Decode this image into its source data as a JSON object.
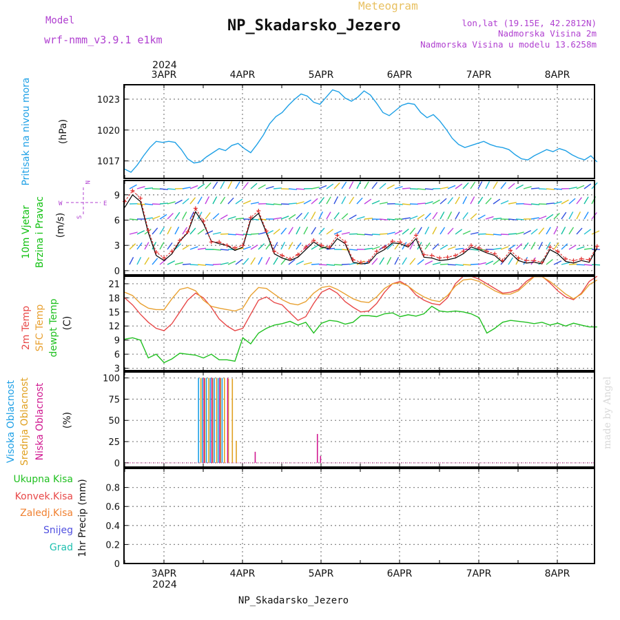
{
  "header": {
    "model_label": "Model",
    "model_name": "wrf-nmm_v3.9.1 e1km",
    "product": "Meteogram",
    "station": "NP_Skadarsko_Jezero",
    "lonlat": "lon,lat (19.15E, 42.2812N)",
    "elevation": "Nadmorska Visina 2m",
    "model_elevation": "Nadmorska Visina u modelu 13.6258m",
    "footer_station": "NP_Skadarsko_Jezero",
    "watermark": "made by Angel"
  },
  "colors": {
    "pressure": "#1ea0e6",
    "wind_label": "#10c010",
    "wind_line": "#000000",
    "wind_gust": "#e03030",
    "temp2m": "#e84848",
    "sfc_temp": "#e8a030",
    "dewpt": "#20c020",
    "cloud_high": "#1ea0e6",
    "cloud_mid": "#e0a020",
    "cloud_low": "#d01890",
    "precip_total": "#20c020",
    "precip_conv": "#e84848",
    "precip_frz": "#f08030",
    "snow": "#5050e0",
    "hail": "#20c0b0",
    "compass": "#b040d0",
    "grid": "#888888"
  },
  "chart_data": [
    {
      "type": "line",
      "id": "pressure",
      "ylabel": [
        "Pritisak na nivou mora",
        "(hPa)"
      ],
      "x_labels_top": [
        "3APR",
        "4APR",
        "5APR",
        "6APR",
        "7APR",
        "8APR"
      ],
      "year_top": "2024",
      "ylim": [
        1015.3,
        1024.4
      ],
      "yticks": [
        1017,
        1020,
        1023
      ],
      "grid": true,
      "series": [
        {
          "x": [
            0,
            0.08,
            0.16,
            0.24,
            0.32,
            0.4,
            0.48,
            0.56,
            0.64,
            0.72,
            0.8,
            0.88,
            0.96,
            1.04,
            1.12,
            1.2,
            1.28,
            1.36,
            1.44,
            1.52,
            1.6,
            1.68,
            1.76,
            1.84,
            1.92,
            2,
            2.08,
            2.16,
            2.24,
            2.32,
            2.4,
            2.48,
            2.56,
            2.64,
            2.72,
            2.8,
            2.88,
            2.96,
            3.04,
            3.12,
            3.2,
            3.28,
            3.36,
            3.44,
            3.52,
            3.6,
            3.68,
            3.76,
            3.84,
            3.92,
            4,
            4.08,
            4.16,
            4.24,
            4.32,
            4.4,
            4.48,
            4.56,
            4.64,
            4.72,
            4.8,
            4.88,
            4.96,
            5.04,
            5.12,
            5.2,
            5.28,
            5.36,
            5.44,
            5.52,
            5.6,
            5.68,
            5.76,
            5.84,
            5.92,
            6
          ],
          "values": [
            1016.2,
            1015.9,
            1016.6,
            1017.5,
            1018.3,
            1018.9,
            1018.8,
            1018.9,
            1018.8,
            1018.1,
            1017.2,
            1016.8,
            1016.9,
            1017.4,
            1017.8,
            1018.2,
            1018.0,
            1018.5,
            1018.7,
            1018.2,
            1017.8,
            1018.6,
            1019.5,
            1020.6,
            1021.3,
            1021.7,
            1022.4,
            1023.0,
            1023.5,
            1023.3,
            1022.7,
            1022.5,
            1023.2,
            1023.9,
            1023.7,
            1023.1,
            1022.8,
            1023.2,
            1023.8,
            1023.4,
            1022.6,
            1021.7,
            1021.4,
            1021.9,
            1022.4,
            1022.6,
            1022.5,
            1021.7,
            1021.2,
            1021.5,
            1020.9,
            1020.1,
            1019.2,
            1018.6,
            1018.3,
            1018.5,
            1018.7,
            1018.9,
            1018.6,
            1018.4,
            1018.3,
            1018.1,
            1017.6,
            1017.2,
            1017.1,
            1017.5,
            1017.8,
            1018.1,
            1017.9,
            1018.2,
            1018.0,
            1017.6,
            1017.3,
            1017.1,
            1017.5,
            1016.9
          ]
        }
      ]
    },
    {
      "type": "line",
      "id": "wind",
      "ylabel": [
        "10m Vjetar",
        "Brzina i Pravac",
        "(m/s)"
      ],
      "compass": {
        "n": "N",
        "e": "E",
        "w": "W",
        "s": "S"
      },
      "ylim": [
        -0.5,
        10.7
      ],
      "yticks": [
        0,
        3,
        6,
        9
      ],
      "grid": true,
      "series": [
        {
          "name": "speed",
          "x": [
            0,
            0.1,
            0.2,
            0.3,
            0.4,
            0.5,
            0.6,
            0.7,
            0.8,
            0.9,
            1,
            1.1,
            1.2,
            1.3,
            1.4,
            1.5,
            1.6,
            1.7,
            1.8,
            1.9,
            2,
            2.1,
            2.2,
            2.3,
            2.4,
            2.5,
            2.6,
            2.7,
            2.8,
            2.9,
            3,
            3.1,
            3.2,
            3.3,
            3.4,
            3.5,
            3.6,
            3.7,
            3.8,
            3.9,
            4,
            4.1,
            4.2,
            4.3,
            4.4,
            4.5,
            4.6,
            4.7,
            4.8,
            4.9,
            5,
            5.1,
            5.2,
            5.3,
            5.4,
            5.5,
            5.6,
            5.7,
            5.8,
            5.9,
            6
          ],
          "values": [
            7.5,
            9.0,
            8.2,
            4.5,
            1.8,
            1.2,
            2.0,
            3.5,
            4.5,
            7.0,
            5.6,
            3.5,
            3.2,
            3.0,
            2.4,
            2.8,
            6.0,
            6.8,
            4.5,
            2.0,
            1.5,
            1.2,
            1.6,
            2.5,
            3.4,
            2.8,
            2.6,
            3.8,
            3.2,
            1.0,
            0.8,
            0.9,
            2.0,
            2.5,
            3.3,
            3.2,
            2.8,
            3.8,
            1.6,
            1.5,
            1.2,
            1.3,
            1.5,
            2.0,
            2.8,
            2.5,
            2.1,
            1.8,
            1.0,
            2.1,
            1.2,
            0.9,
            1.0,
            0.8,
            2.5,
            2.0,
            1.1,
            0.9,
            1.2,
            1.0,
            2.7
          ]
        },
        {
          "name": "gust",
          "x": [
            0,
            0.1,
            0.2,
            0.3,
            0.4,
            0.5,
            0.6,
            0.7,
            0.8,
            0.9,
            1,
            1.1,
            1.2,
            1.3,
            1.4,
            1.5,
            1.6,
            1.7,
            1.8,
            1.9,
            2,
            2.1,
            2.2,
            2.3,
            2.4,
            2.5,
            2.6,
            2.7,
            2.8,
            2.9,
            3,
            3.1,
            3.2,
            3.3,
            3.4,
            3.5,
            3.6,
            3.7,
            3.8,
            3.9,
            4,
            4.1,
            4.2,
            4.3,
            4.4,
            4.5,
            4.6,
            4.7,
            4.8,
            4.9,
            5,
            5.1,
            5.2,
            5.3,
            5.4,
            5.5,
            5.6,
            5.7,
            5.8,
            5.9,
            6
          ],
          "values": [
            8.2,
            9.5,
            8.6,
            4.8,
            2.2,
            1.5,
            2.3,
            3.6,
            4.6,
            7.4,
            5.9,
            3.4,
            3.4,
            3.0,
            2.7,
            3.0,
            6.3,
            7.1,
            4.7,
            2.3,
            1.8,
            1.4,
            1.9,
            2.8,
            3.6,
            3.0,
            2.8,
            4.2,
            3.4,
            1.3,
            1.0,
            1.1,
            2.3,
            2.8,
            3.5,
            3.4,
            3.0,
            4.2,
            1.9,
            1.8,
            1.5,
            1.6,
            1.8,
            2.3,
            3.0,
            2.7,
            2.3,
            2.0,
            1.2,
            2.4,
            1.5,
            1.2,
            1.2,
            1.0,
            2.8,
            2.3,
            1.4,
            1.2,
            1.4,
            1.3,
            2.9
          ]
        }
      ]
    },
    {
      "type": "line",
      "id": "temperature",
      "ylabel": [
        "2m Temp",
        "SFC Temp",
        "dewpt Temp",
        "(C)"
      ],
      "ylim": [
        2.5,
        22.6
      ],
      "yticks": [
        3,
        6,
        9,
        12,
        15,
        18,
        21
      ],
      "grid": true,
      "series": [
        {
          "name": "2m Temp",
          "x": [
            0,
            0.1,
            0.2,
            0.3,
            0.4,
            0.5,
            0.6,
            0.7,
            0.8,
            0.9,
            1,
            1.1,
            1.2,
            1.3,
            1.4,
            1.5,
            1.6,
            1.7,
            1.8,
            1.9,
            2,
            2.1,
            2.2,
            2.3,
            2.4,
            2.5,
            2.6,
            2.7,
            2.8,
            2.9,
            3,
            3.1,
            3.2,
            3.3,
            3.4,
            3.5,
            3.6,
            3.7,
            3.8,
            3.9,
            4,
            4.1,
            4.2,
            4.3,
            4.4,
            4.5,
            4.6,
            4.7,
            4.8,
            4.9,
            5,
            5.1,
            5.2,
            5.3,
            5.4,
            5.5,
            5.6,
            5.7,
            5.8,
            5.9,
            6
          ],
          "values": [
            18.0,
            16.5,
            14.5,
            12.8,
            11.5,
            11.0,
            12.5,
            15.0,
            17.5,
            19.0,
            18.0,
            16.0,
            13.5,
            12.0,
            11.0,
            11.5,
            14.5,
            17.5,
            18.2,
            17.0,
            16.5,
            14.8,
            13.2,
            14.0,
            16.8,
            19.2,
            20.0,
            19.0,
            17.2,
            16.0,
            15.0,
            15.2,
            16.8,
            19.2,
            21.0,
            21.5,
            20.5,
            18.6,
            17.5,
            16.8,
            16.5,
            18.0,
            21.0,
            23.0,
            22.8,
            22.0,
            21.0,
            20.0,
            19.0,
            19.2,
            19.8,
            21.5,
            22.8,
            22.6,
            21.2,
            19.5,
            18.2,
            17.6,
            19.0,
            21.5,
            22.8
          ]
        },
        {
          "name": "SFC Temp",
          "x": [
            0,
            0.1,
            0.2,
            0.3,
            0.4,
            0.5,
            0.6,
            0.7,
            0.8,
            0.9,
            1,
            1.1,
            1.2,
            1.3,
            1.4,
            1.5,
            1.6,
            1.7,
            1.8,
            1.9,
            2,
            2.1,
            2.2,
            2.3,
            2.4,
            2.5,
            2.6,
            2.7,
            2.8,
            2.9,
            3,
            3.1,
            3.2,
            3.3,
            3.4,
            3.5,
            3.6,
            3.7,
            3.8,
            3.9,
            4,
            4.1,
            4.2,
            4.3,
            4.4,
            4.5,
            4.6,
            4.7,
            4.8,
            4.9,
            5,
            5.1,
            5.2,
            5.3,
            5.4,
            5.5,
            5.6,
            5.7,
            5.8,
            5.9,
            6
          ],
          "values": [
            19.2,
            18.5,
            16.8,
            15.8,
            15.5,
            15.5,
            17.8,
            19.8,
            20.2,
            19.5,
            17.5,
            16.2,
            15.8,
            15.5,
            15.2,
            15.8,
            18.5,
            20.2,
            20.0,
            18.8,
            17.6,
            16.8,
            16.5,
            17.2,
            19.0,
            20.2,
            20.5,
            19.8,
            18.8,
            17.8,
            17.2,
            17.0,
            18.2,
            20.0,
            21.0,
            21.2,
            20.5,
            19.2,
            18.2,
            17.5,
            17.2,
            18.5,
            20.5,
            21.8,
            22.0,
            21.5,
            20.5,
            19.5,
            18.8,
            18.8,
            19.5,
            21.0,
            22.5,
            22.5,
            21.5,
            20.2,
            18.8,
            17.8,
            18.8,
            20.8,
            21.8
          ]
        },
        {
          "name": "dewpt Temp",
          "x": [
            0,
            0.1,
            0.2,
            0.3,
            0.4,
            0.5,
            0.6,
            0.7,
            0.8,
            0.9,
            1,
            1.1,
            1.2,
            1.3,
            1.4,
            1.5,
            1.6,
            1.7,
            1.8,
            1.9,
            2,
            2.1,
            2.2,
            2.3,
            2.4,
            2.5,
            2.6,
            2.7,
            2.8,
            2.9,
            3,
            3.1,
            3.2,
            3.3,
            3.4,
            3.5,
            3.6,
            3.7,
            3.8,
            3.9,
            4,
            4.1,
            4.2,
            4.3,
            4.4,
            4.5,
            4.6,
            4.7,
            4.8,
            4.9,
            5,
            5.1,
            5.2,
            5.3,
            5.4,
            5.5,
            5.6,
            5.7,
            5.8,
            5.9,
            6
          ],
          "values": [
            9.2,
            9.5,
            9.0,
            5.2,
            6.0,
            4.2,
            5.0,
            6.2,
            6.0,
            5.8,
            5.2,
            6.0,
            4.8,
            4.8,
            4.5,
            9.5,
            8.2,
            10.5,
            11.5,
            12.2,
            12.5,
            13.0,
            12.2,
            12.8,
            10.5,
            12.6,
            13.2,
            13.0,
            12.4,
            12.8,
            14.2,
            14.2,
            14.0,
            14.6,
            14.8,
            14.0,
            14.4,
            14.1,
            14.6,
            16.2,
            15.2,
            15.0,
            15.2,
            15.0,
            14.6,
            13.8,
            10.5,
            11.5,
            12.8,
            13.2,
            13.0,
            12.8,
            12.5,
            12.8,
            12.2,
            12.6,
            12.0,
            12.6,
            12.2,
            11.8,
            11.8
          ]
        }
      ]
    },
    {
      "type": "bar",
      "id": "cloudiness",
      "ylabel": [
        "Visoka Oblacnost",
        "Srednja Oblacnost",
        "Niska Oblacnost",
        "(%)"
      ],
      "ylim": [
        -5,
        107
      ],
      "yticks": [
        0,
        25,
        50,
        75,
        100
      ],
      "grid": true,
      "series": [
        {
          "name": "Visoka Oblacnost",
          "x": [
            0.5,
            0.55,
            0.6,
            0.65,
            0.7,
            0.75,
            0.8
          ],
          "values": [
            100,
            100,
            100,
            100,
            100,
            100,
            100
          ]
        },
        {
          "name": "Srednja Oblacnost",
          "x": [
            0.53,
            0.58,
            0.63,
            0.68,
            0.73,
            0.78,
            0.83,
            0.88,
            0.93,
            0.98
          ],
          "values": [
            100,
            100,
            100,
            100,
            100,
            100,
            100,
            99,
            99,
            26
          ]
        },
        {
          "name": "Niska Oblacnost",
          "x": [
            0.57,
            0.67,
            0.77,
            0.87,
            1.22,
            2.01,
            2.05
          ],
          "values": [
            100,
            100,
            100,
            100,
            13,
            34,
            8
          ]
        }
      ]
    },
    {
      "type": "line",
      "id": "precip",
      "ylabel": [
        "1hr Precip (mm)"
      ],
      "legend": [
        "Ukupna Kisa",
        "Konvek.Kisa",
        "Zaledj.Kisa",
        "Snijeg",
        "Grad"
      ],
      "ylim": [
        0,
        1.0
      ],
      "yticks": [
        "0",
        "0.2",
        "0.4",
        "0.6",
        "0.8"
      ],
      "x_labels_bottom": [
        "3APR",
        "4APR",
        "5APR",
        "6APR",
        "7APR",
        "8APR"
      ],
      "year_bottom": "2024",
      "grid": true,
      "series": []
    }
  ]
}
